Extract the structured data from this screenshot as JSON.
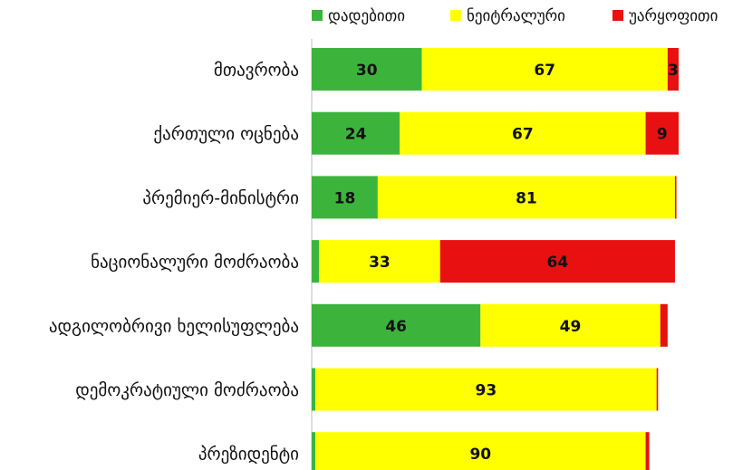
{
  "chart_data": {
    "type": "bar",
    "orientation": "horizontal",
    "stacked": true,
    "title": "",
    "xlabel": "",
    "ylabel": "",
    "xlim": [
      0,
      100
    ],
    "grid": false,
    "legend_position": "top",
    "categories": [
      "მთავრობა",
      "ქართული ოცნება",
      "პრემიერ-მინისტრი",
      "ნაციონალური მოძრაობა",
      "ადგილობრივი ხელისუფლება",
      "დემოკრატიული მოძრაობა",
      "პრეზიდენტი"
    ],
    "series": [
      {
        "name": "დადებითი",
        "color": "#3cb43c",
        "values": [
          30,
          24,
          18,
          2,
          46,
          1,
          1
        ],
        "labels": [
          "30",
          "24",
          "18",
          "",
          "46",
          "",
          ""
        ]
      },
      {
        "name": "ნეიტრალური",
        "color": "#ffff00",
        "values": [
          67,
          67,
          81,
          33,
          49,
          93,
          90
        ],
        "labels": [
          "67",
          "67",
          "81",
          "33",
          "49",
          "93",
          "90"
        ]
      },
      {
        "name": "უარყოფითი",
        "color": "#e81010",
        "values": [
          3,
          9,
          0.4,
          64,
          2,
          0.4,
          1
        ],
        "labels": [
          "3",
          "9",
          "",
          "64",
          "",
          "",
          ""
        ]
      }
    ]
  }
}
